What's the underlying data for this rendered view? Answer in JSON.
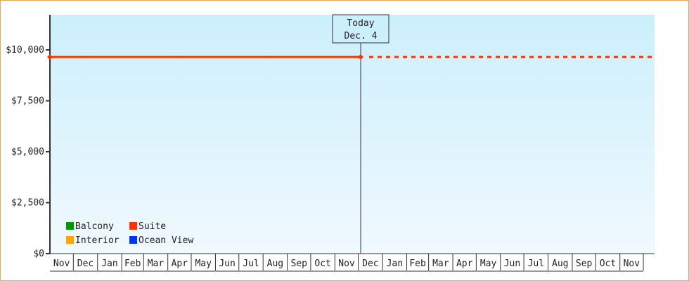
{
  "chart_data": {
    "type": "line",
    "ylim": [
      0,
      11724
    ],
    "yticks": [
      0,
      2500,
      5000,
      7500,
      10000
    ],
    "ytick_labels": [
      "$0",
      "$2,500",
      "$5,000",
      "$7,500",
      "$10,000"
    ],
    "x_start": "Nov 1",
    "months": [
      "Nov",
      "Dec",
      "Jan",
      "Feb",
      "Mar",
      "Apr",
      "May",
      "Jun",
      "Jul",
      "Aug",
      "Sep",
      "Oct",
      "Nov",
      "Dec",
      "Jan",
      "Feb",
      "Mar",
      "Apr",
      "May",
      "Jun",
      "Jul",
      "Aug",
      "Sep",
      "Oct",
      "Nov"
    ],
    "month_days": [
      30,
      31,
      31,
      28,
      31,
      30,
      31,
      30,
      31,
      31,
      30,
      31,
      30,
      31,
      31,
      28,
      31,
      30,
      31,
      30,
      31,
      31,
      30,
      31,
      30
    ],
    "today": {
      "line1": "Today",
      "line2": "Dec. 4",
      "day_index": 398
    },
    "series": [
      {
        "name": "Suite",
        "color": "#ff3300",
        "points": [
          {
            "day": 0,
            "value": 9650
          },
          {
            "day": 398,
            "value": 9650
          }
        ],
        "projection_value": 9650
      }
    ],
    "legend": [
      {
        "name": "Balcony",
        "color": "#009900"
      },
      {
        "name": "Suite",
        "color": "#ff3300"
      },
      {
        "name": "Interior",
        "color": "#ffa500"
      },
      {
        "name": "Ocean View",
        "color": "#0033ff"
      }
    ],
    "legend_position": "bottom-left",
    "background_gradient": [
      "#cceffc",
      "#f0f9fe"
    ]
  }
}
